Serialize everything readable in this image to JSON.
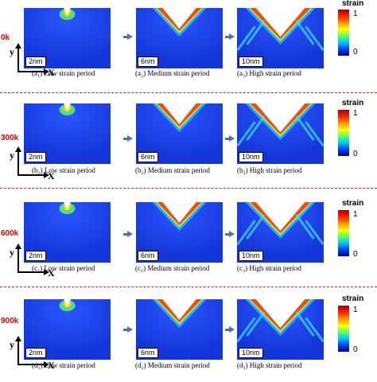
{
  "colorbar": {
    "title": "strain",
    "max_label": "1",
    "min_label": "0",
    "colors": [
      "#a00000",
      "#ff2000",
      "#ff9000",
      "#ffff00",
      "#60ff60",
      "#00c8ff",
      "#0040ff",
      "#00007a"
    ]
  },
  "axes": {
    "y_label": "y",
    "x_label": "X"
  },
  "rows": [
    {
      "temperature": "0k",
      "panels": [
        {
          "scale": "2nm",
          "label": "(a₁) Low strain period"
        },
        {
          "scale": "6nm",
          "label": "(a₂) Medium strain period"
        },
        {
          "scale": "10nm",
          "label": "(a₃) High strain period"
        }
      ]
    },
    {
      "temperature": "300k",
      "panels": [
        {
          "scale": "2nm",
          "label": "(b₁) Low strain period"
        },
        {
          "scale": "6nm",
          "label": "(b₂) Medium strain period"
        },
        {
          "scale": "10nm",
          "label": "(b₃) High strain period"
        }
      ]
    },
    {
      "temperature": "600k",
      "panels": [
        {
          "scale": "2nm",
          "label": "(c₁) Low strain period"
        },
        {
          "scale": "6nm",
          "label": "(c₂) Medium strain period"
        },
        {
          "scale": "10nm",
          "label": "(c₃) High strain period"
        }
      ]
    },
    {
      "temperature": "900k",
      "panels": [
        {
          "scale": "2nm",
          "label": "(d₁) Low strain period"
        },
        {
          "scale": "6nm",
          "label": "(d₂) Medium strain period"
        },
        {
          "scale": "10nm",
          "label": "(d₃) High strain period"
        }
      ]
    }
  ]
}
